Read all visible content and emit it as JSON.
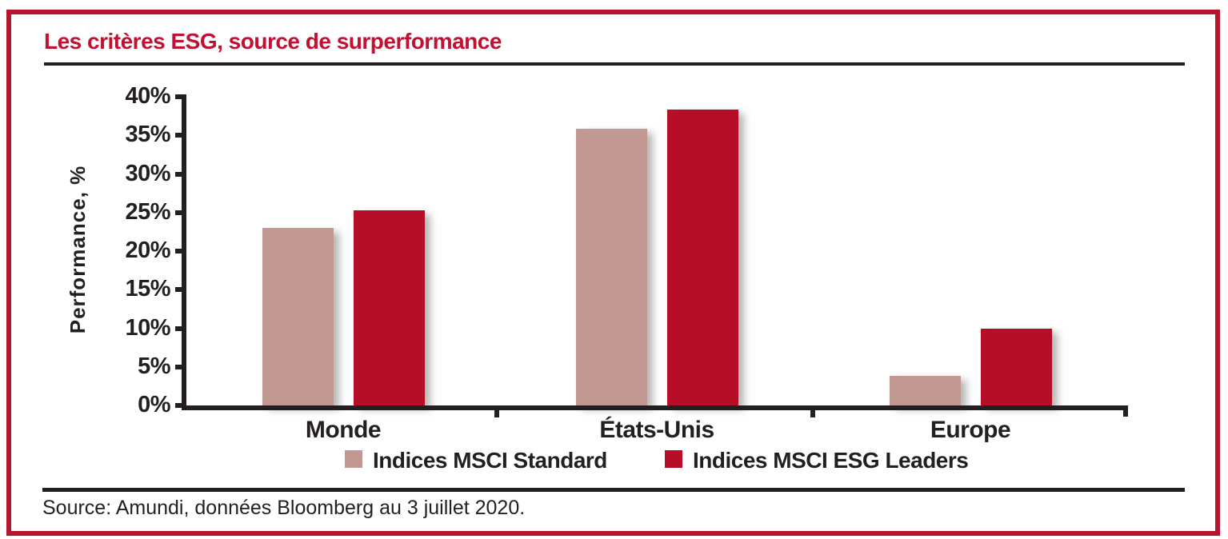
{
  "title": "Les critères ESG, source de surperformance",
  "source_note": "Source: Amundi, données Bloomberg au 3 juillet 2020.",
  "colors": {
    "frame_red": "#b5152e",
    "title_red": "#c11030",
    "bar_standard": "#c29892",
    "bar_esg_leaders": "#b60e26",
    "ink_black": "#231f20"
  },
  "chart_data": {
    "type": "bar",
    "title": "Les critères ESG, source de surperformance",
    "categories": [
      "Monde",
      "États-Unis",
      "Europe"
    ],
    "series": [
      {
        "name": "Indices MSCI Standard",
        "color": "#c29892",
        "values": [
          23.0,
          35.9,
          3.8
        ]
      },
      {
        "name": "Indices MSCI ESG Leaders",
        "color": "#b60e26",
        "values": [
          25.3,
          38.3,
          9.9
        ]
      }
    ],
    "xlabel": "",
    "ylabel": "Performance, %",
    "ylim": [
      0,
      40
    ],
    "yticks": [
      0,
      5,
      10,
      15,
      20,
      25,
      30,
      35,
      40
    ],
    "ytick_suffix": "%",
    "grid": false,
    "legend_position": "bottom"
  }
}
